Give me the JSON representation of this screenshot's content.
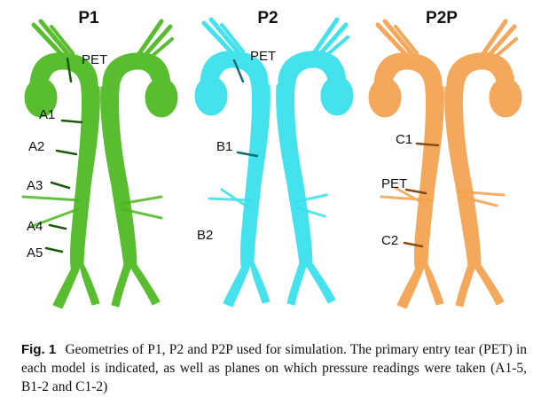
{
  "panels": [
    {
      "title": "P1",
      "color": "#4cb81f",
      "dark": "#2e8a12"
    },
    {
      "title": "P2",
      "color": "#34e0ec",
      "dark": "#15a9b8"
    },
    {
      "title": "P2P",
      "color": "#f4a14e",
      "dark": "#d07a22"
    }
  ],
  "labels": {
    "p1": [
      "PET",
      "A1",
      "A2",
      "A3",
      "A4",
      "A5"
    ],
    "p2": [
      "PET",
      "B1",
      "B2"
    ],
    "p2p": [
      "C1",
      "PET",
      "C2"
    ]
  },
  "caption": {
    "label": "Fig.",
    "number": "1",
    "text": "Geometries of P1, P2 and P2P used for simulation. The primary entry tear (PET) in each model is indicated, as well as planes on which pressure readings were taken (A1-5, B1-2 and C1-2)"
  }
}
